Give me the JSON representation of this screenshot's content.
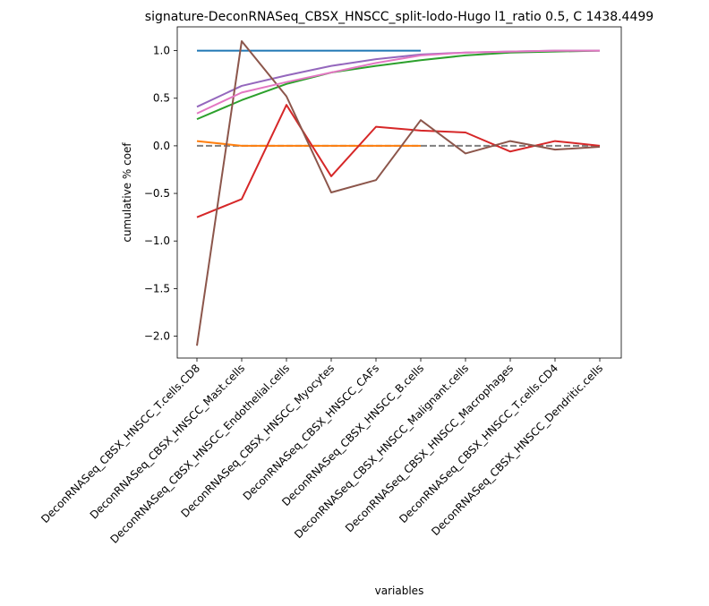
{
  "chart_data": {
    "type": "line",
    "title": "signature-DeconRNASeq_CBSX_HNSCC_split-lodo-Hugo l1_ratio 0.5, C 1438.4499",
    "xlabel": "variables",
    "ylabel": "cumulative % coef",
    "categories": [
      "DeconRNASeq_CBSX_HNSCC_T.cells.CD8",
      "DeconRNASeq_CBSX_HNSCC_Mast.cells",
      "DeconRNASeq_CBSX_HNSCC_Endothelial.cells",
      "DeconRNASeq_CBSX_HNSCC_Myocytes",
      "DeconRNASeq_CBSX_HNSCC_CAFs",
      "DeconRNASeq_CBSX_HNSCC_B.cells",
      "DeconRNASeq_CBSX_HNSCC_Malignant.cells",
      "DeconRNASeq_CBSX_HNSCC_Macrophages",
      "DeconRNASeq_CBSX_HNSCC_T.cells.CD4",
      "DeconRNASeq_CBSX_HNSCC_Dendritic.cells"
    ],
    "ylim": [
      -2.23,
      1.25
    ],
    "yticks": [
      -2.0,
      -1.5,
      -1.0,
      -0.5,
      0.0,
      0.5,
      1.0
    ],
    "ytick_labels": [
      "−2.0",
      "−1.5",
      "−1.0",
      "−0.5",
      "0.0",
      "0.5",
      "1.0"
    ],
    "grid": false,
    "series": [
      {
        "color": "#1f77b4",
        "dashed": false,
        "values": [
          1.0,
          1.0,
          1.0,
          1.0,
          1.0,
          1.0,
          null,
          null,
          null,
          null
        ]
      },
      {
        "color": "#ff7f0e",
        "dashed": false,
        "values": [
          0.05,
          0.0,
          0.0,
          0.0,
          0.0,
          0.0,
          null,
          null,
          null,
          null
        ]
      },
      {
        "color": "#2ca02c",
        "dashed": false,
        "values": [
          0.28,
          0.48,
          0.65,
          0.77,
          0.84,
          0.9,
          0.95,
          0.98,
          0.99,
          1.0
        ]
      },
      {
        "color": "#d62728",
        "dashed": false,
        "values": [
          -0.75,
          -0.56,
          0.43,
          -0.32,
          0.2,
          0.16,
          0.14,
          -0.06,
          0.05,
          0.0
        ]
      },
      {
        "color": "#9467bd",
        "dashed": false,
        "values": [
          0.41,
          0.63,
          0.74,
          0.84,
          0.91,
          0.96,
          0.98,
          0.99,
          1.0,
          1.0
        ]
      },
      {
        "color": "#8c564b",
        "dashed": false,
        "values": [
          -2.1,
          1.1,
          0.52,
          -0.49,
          -0.36,
          0.27,
          -0.08,
          0.05,
          -0.04,
          -0.01
        ]
      },
      {
        "color": "#e377c2",
        "dashed": false,
        "values": [
          0.34,
          0.56,
          0.67,
          0.77,
          0.87,
          0.95,
          0.98,
          0.99,
          1.0,
          1.0
        ]
      },
      {
        "color": "#7f7f7f",
        "dashed": true,
        "values": [
          0,
          0,
          0,
          0,
          0,
          0,
          0,
          0,
          0,
          0
        ]
      }
    ]
  }
}
